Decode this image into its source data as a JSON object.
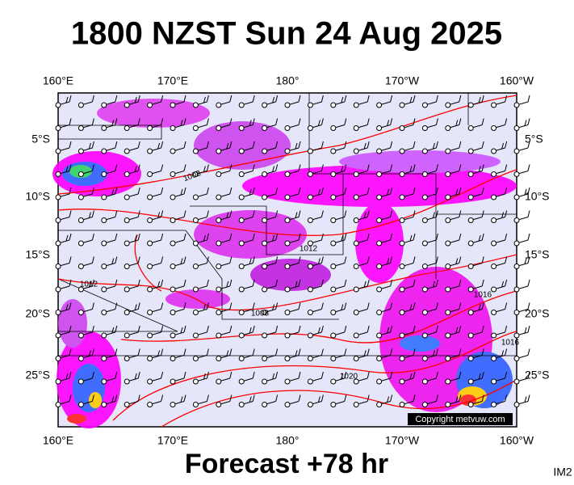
{
  "header": {
    "title": "1800 NZST Sun 24 Aug 2025"
  },
  "map": {
    "lon_labels": [
      "160°E",
      "170°E",
      "180°",
      "170°W",
      "160°W"
    ],
    "lat_labels": [
      "5°S",
      "10°S",
      "15°S",
      "20°S",
      "25°S"
    ],
    "isobar_labels": [
      "1008",
      "1012",
      "1012",
      "1008",
      "1016",
      "1020",
      "1016"
    ],
    "copyright": "Copyright metvuw.com"
  },
  "footer": {
    "forecast": "Forecast +78 hr",
    "code": "IM2"
  }
}
